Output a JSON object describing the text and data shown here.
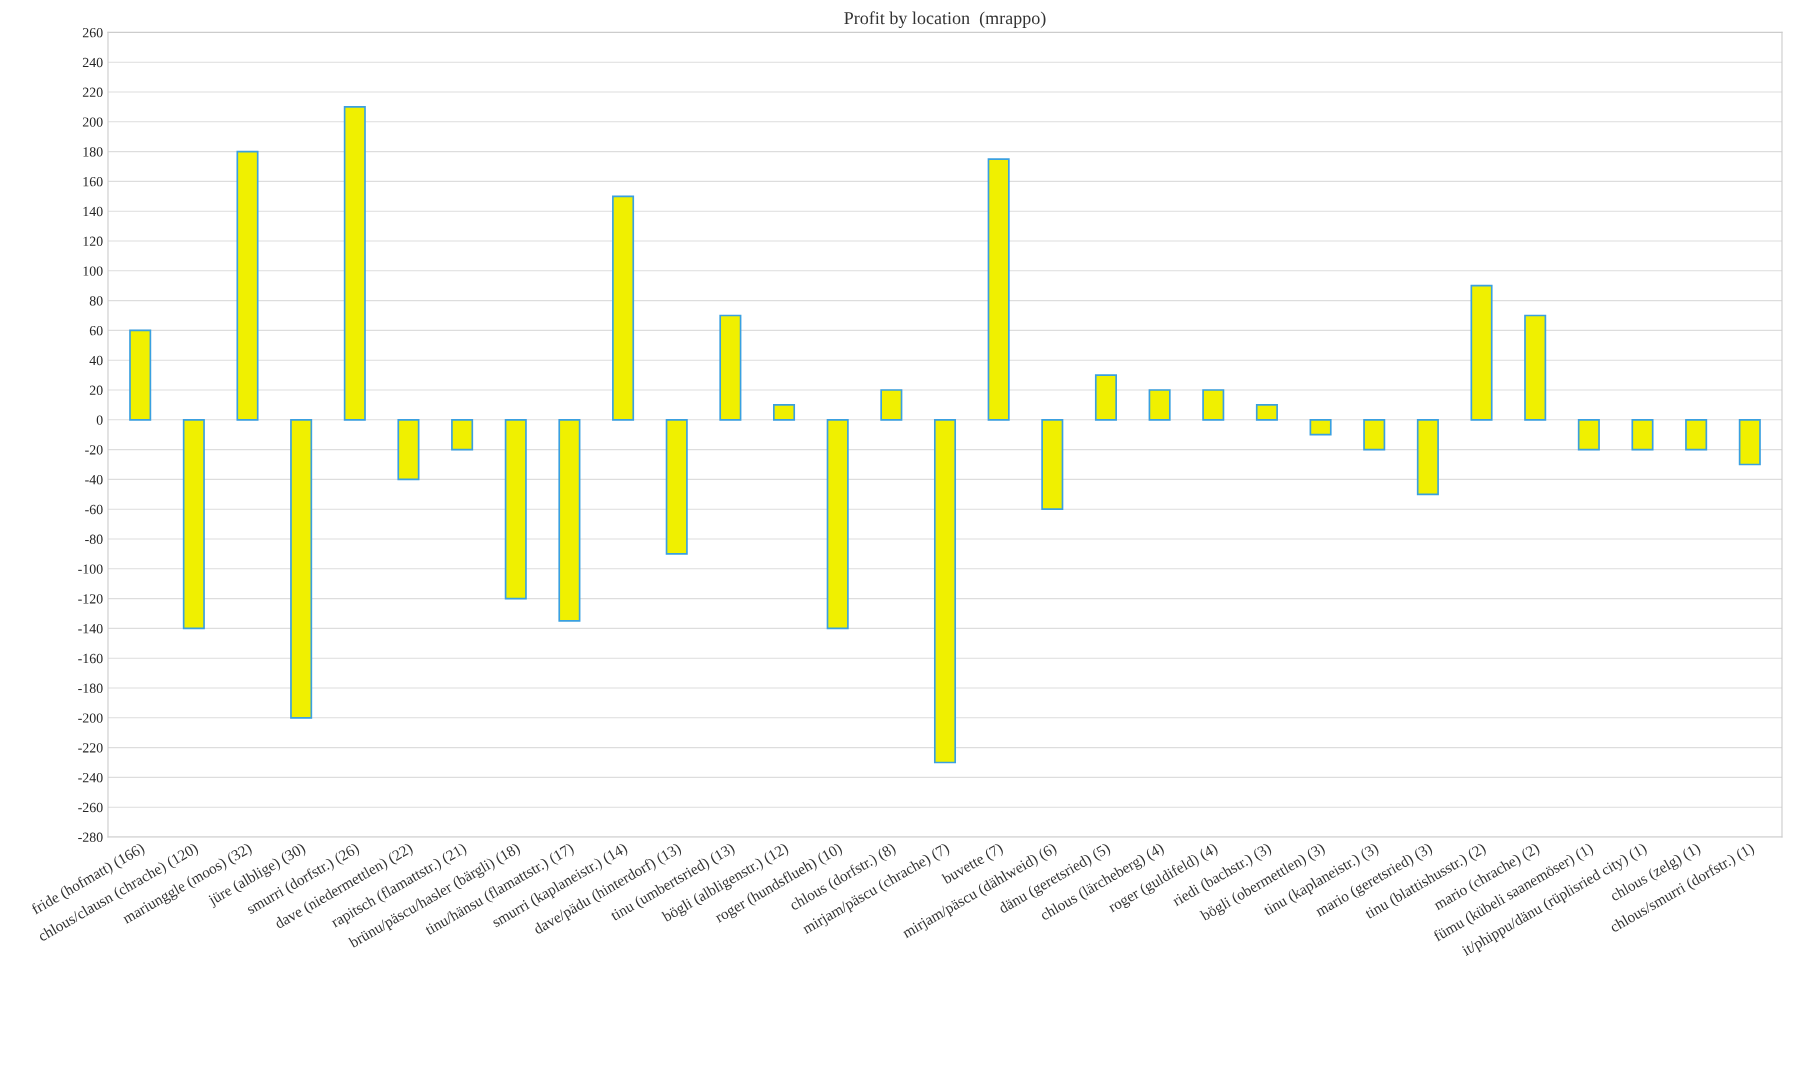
{
  "chart_data": {
    "type": "bar",
    "title": "Profit by location  (mrappo)",
    "categories": [
      "fride (hofmatt) (166)",
      "chlous/clausn (chrache) (120)",
      "mariunggle (moos) (32)",
      "jüre (alblige) (30)",
      "smurri (dorfstr.) (26)",
      "dave (niedermettlen) (22)",
      "rapitsch (flamattstr.) (21)",
      "brünu/päscu/hasler (bärgli) (18)",
      "tinu/hänsu (flamattstr.) (17)",
      "smurri (kaplaneistr.) (14)",
      "dave/pädu (hinterdorf) (13)",
      "tinu (umbertsried) (13)",
      "bögli (albligenstr.) (12)",
      "roger (hundsflueh) (10)",
      "chlous (dorfstr.) (8)",
      "mirjam/päscu (chrache) (7)",
      "buvette (7)",
      "mirjam/päscu (dählweid) (6)",
      "dänu (geretsried) (5)",
      "chlous (lärcheberg) (4)",
      "roger (guldifeld) (4)",
      "riedi (bachstr.) (3)",
      "bögli (obermettlen) (3)",
      "tinu (kaplaneistr.) (3)",
      "mario (geretsried) (3)",
      "tinu (blattishusstr.) (2)",
      "mario (chrache) (2)",
      "fümu (kübeli saanemöser) (1)",
      "it/phippu/dänu (rüplisried city) (1)",
      "chlous (zelg) (1)",
      "chlous/smurri (dorfstr.) (1)"
    ],
    "values": [
      60,
      -140,
      180,
      -200,
      210,
      -40,
      -20,
      -120,
      -135,
      150,
      -90,
      70,
      10,
      -140,
      20,
      -230,
      175,
      -60,
      30,
      20,
      20,
      10,
      -10,
      -20,
      -50,
      90,
      70,
      -20,
      -20,
      -20,
      -30
    ],
    "color": "#f0f000",
    "ylim": [
      -280,
      260
    ],
    "yticks": [
      -280,
      -260,
      -240,
      -220,
      -200,
      -180,
      -160,
      -140,
      -120,
      -100,
      -80,
      -60,
      -40,
      -20,
      0,
      20,
      40,
      60,
      80,
      100,
      120,
      140,
      160,
      180,
      200,
      220,
      240,
      260
    ],
    "grid": "y"
  }
}
